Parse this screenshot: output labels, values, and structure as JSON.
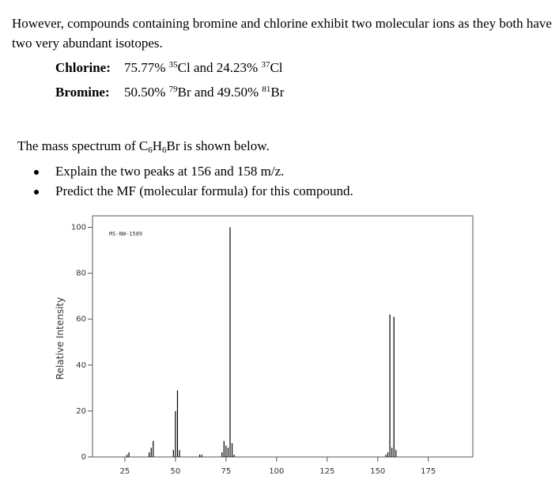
{
  "paragraph": "However, compounds containing bromine and chlorine exhibit two molecular ions as they both have two very abundant isotopes.",
  "chlorine": {
    "label": "Chlorine:",
    "text1": "75.77% ",
    "sup1": "35",
    "text2": "Cl and 24.23% ",
    "sup2": "37",
    "text3": "Cl"
  },
  "bromine": {
    "label": "Bromine:",
    "text1": "50.50% ",
    "sup1": "79",
    "text2": "Br and 49.50% ",
    "sup2": "81",
    "text3": "Br"
  },
  "question": {
    "text1": "The mass spectrum of C",
    "sub1": "6",
    "text2": "H",
    "sub2": "6",
    "text3": "Br is shown below."
  },
  "bullets": [
    "Explain the two peaks at 156 and 158 m/z.",
    "Predict the MF (molecular formula) for this compound."
  ],
  "chart_data": {
    "type": "bar",
    "annotation": "MS-NW-1589",
    "ylabel": "Relative Intensity",
    "x": [
      26,
      27,
      37,
      38,
      39,
      49,
      50,
      51,
      52,
      62,
      63,
      73,
      74,
      75,
      76,
      77,
      78,
      79,
      154,
      155,
      156,
      157,
      158,
      159
    ],
    "values": [
      1,
      2,
      2,
      4,
      7,
      3,
      20,
      29,
      3,
      1,
      1,
      2,
      7,
      5,
      4,
      100,
      6,
      1,
      1,
      2,
      62,
      4,
      61,
      3
    ],
    "color": "#000000",
    "xlim": [
      9,
      197
    ],
    "ylim": [
      0,
      105
    ],
    "xticks": [
      25,
      50,
      75,
      100,
      125,
      150,
      175
    ],
    "yticks": [
      0,
      20,
      40,
      60,
      80,
      100
    ]
  }
}
